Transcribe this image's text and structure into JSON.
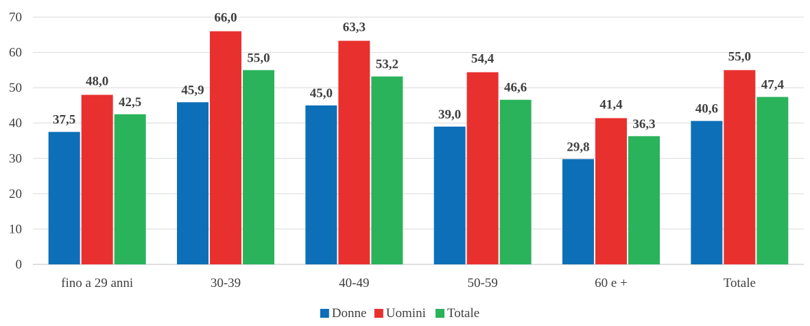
{
  "chart_data": {
    "type": "bar",
    "title": "",
    "xlabel": "",
    "ylabel": "",
    "categories": [
      "fino a 29 anni",
      "30-39",
      "40-49",
      "50-59",
      "60 e +",
      "Totale"
    ],
    "ylim": [
      0,
      70
    ],
    "yticks": [
      0,
      10,
      20,
      30,
      40,
      50,
      60,
      70
    ],
    "grid": true,
    "legend_position": "bottom-center",
    "decimal_separator": ",",
    "series": [
      {
        "name": "Donne",
        "color": "#0d6fb8",
        "values": [
          37.5,
          45.9,
          45.0,
          39.0,
          29.8,
          40.6
        ]
      },
      {
        "name": "Uomini",
        "color": "#e8312f",
        "values": [
          48.0,
          66.0,
          63.3,
          54.4,
          41.4,
          55.0
        ]
      },
      {
        "name": "Totale",
        "color": "#2ab35b",
        "values": [
          42.5,
          55.0,
          53.2,
          46.6,
          36.3,
          47.4
        ]
      }
    ]
  }
}
